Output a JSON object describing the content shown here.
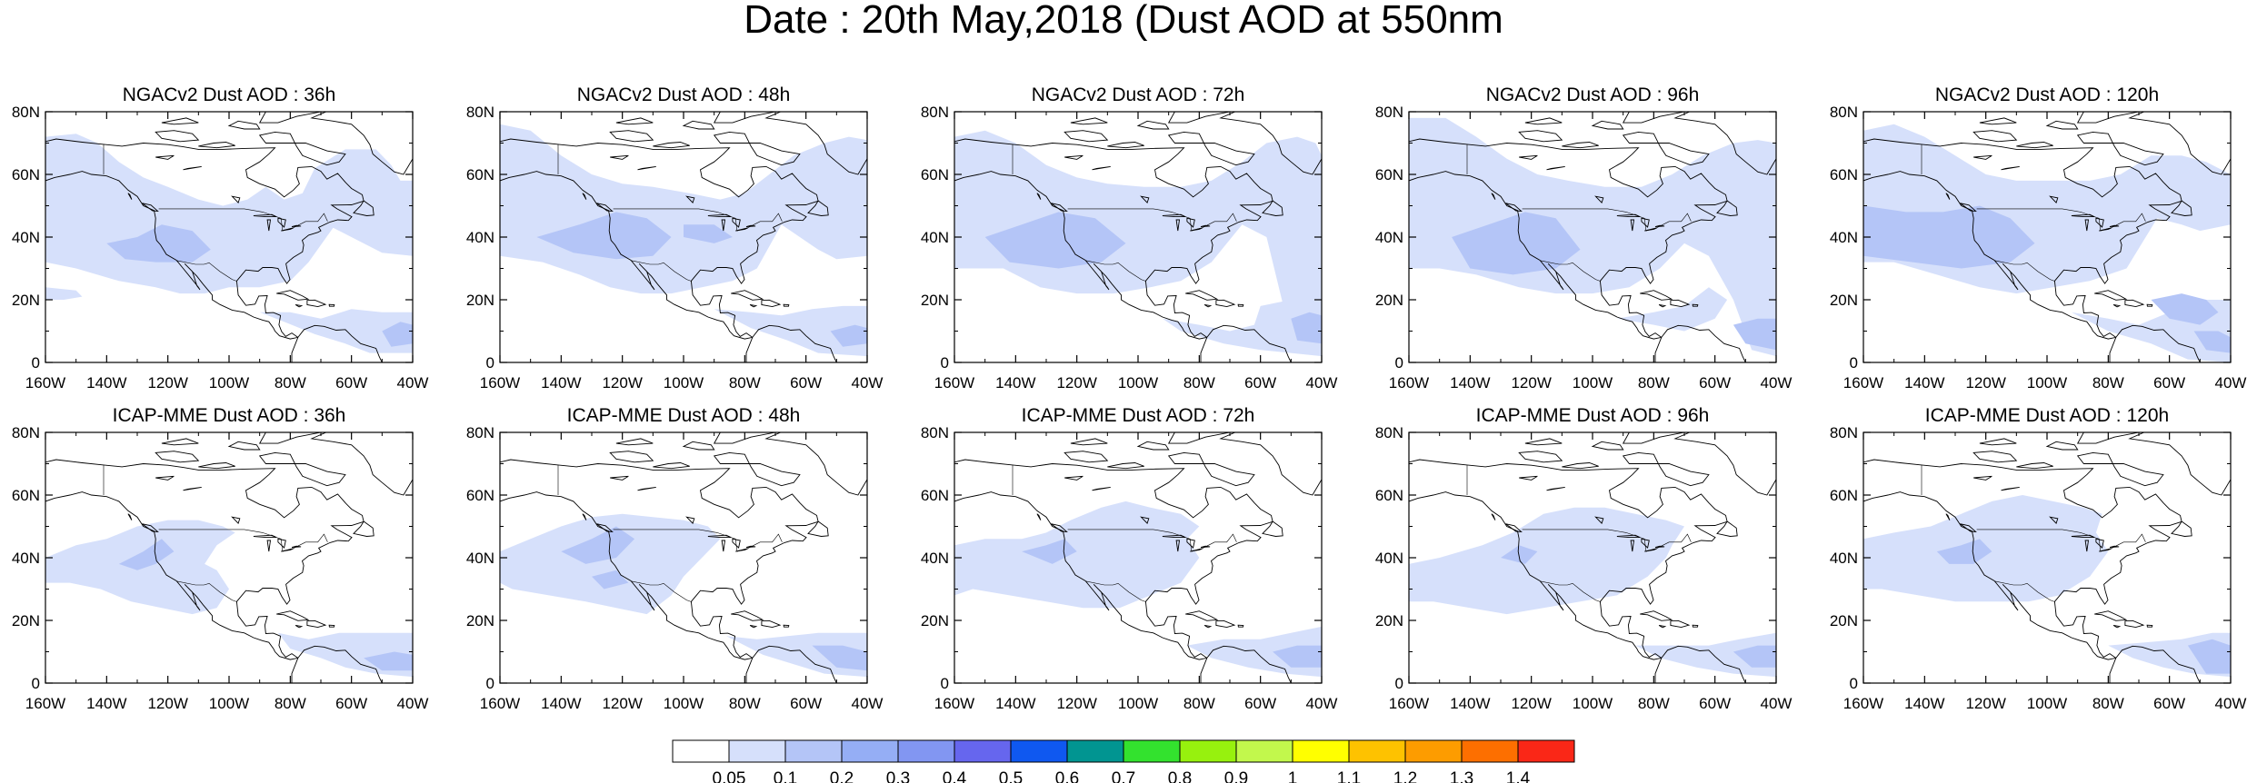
{
  "title": "Date : 20th May,2018 (Dust AOD at 550nm",
  "panels": [
    {
      "title": "NGACv2 Dust AOD : 36h",
      "model": "NGACv2",
      "lead": "36h"
    },
    {
      "title": "NGACv2 Dust AOD : 48h",
      "model": "NGACv2",
      "lead": "48h"
    },
    {
      "title": "NGACv2 Dust AOD : 72h",
      "model": "NGACv2",
      "lead": "72h"
    },
    {
      "title": "NGACv2 Dust AOD : 96h",
      "model": "NGACv2",
      "lead": "96h"
    },
    {
      "title": "NGACv2 Dust AOD : 120h",
      "model": "NGACv2",
      "lead": "120h"
    },
    {
      "title": "ICAP-MME Dust AOD : 36h",
      "model": "ICAP-MME",
      "lead": "36h"
    },
    {
      "title": "ICAP-MME Dust AOD : 48h",
      "model": "ICAP-MME",
      "lead": "48h"
    },
    {
      "title": "ICAP-MME Dust AOD : 72h",
      "model": "ICAP-MME",
      "lead": "72h"
    },
    {
      "title": "ICAP-MME Dust AOD : 96h",
      "model": "ICAP-MME",
      "lead": "96h"
    },
    {
      "title": "ICAP-MME Dust AOD : 120h",
      "model": "ICAP-MME",
      "lead": "120h"
    }
  ],
  "axes": {
    "lon_labels": [
      "160W",
      "140W",
      "120W",
      "100W",
      "80W",
      "60W",
      "40W"
    ],
    "lat_labels": [
      "0",
      "20N",
      "40N",
      "60N",
      "80N"
    ]
  },
  "colorbar": {
    "labels": [
      "0.05",
      "0.1",
      "0.2",
      "0.3",
      "0.4",
      "0.5",
      "0.6",
      "0.7",
      "0.8",
      "0.9",
      "1",
      "1.1",
      "1.2",
      "1.3",
      "1.4"
    ],
    "colors": [
      "#ffffff",
      "#d6e0fb",
      "#b4c5f7",
      "#95aef5",
      "#8296f2",
      "#6666ee",
      "#0f58f0",
      "#019591",
      "#33e22e",
      "#97f10e",
      "#c2f84c",
      "#ffff00",
      "#fec200",
      "#fd9c00",
      "#fd6f00",
      "#fa2717"
    ]
  },
  "colors": {
    "dust_light": "#d6e0fb",
    "dust_mid": "#b4c5f7"
  }
}
